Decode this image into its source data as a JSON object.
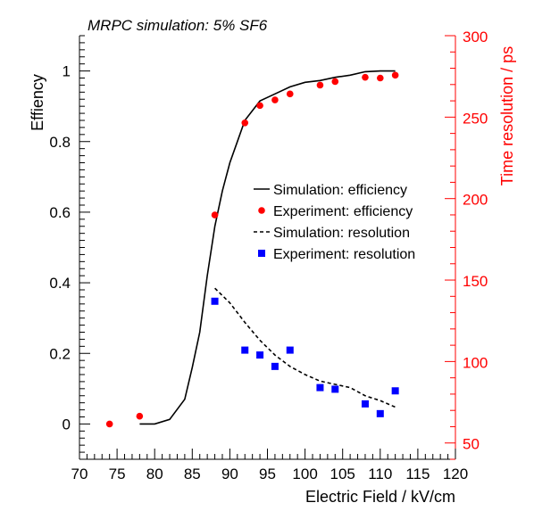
{
  "chart_data": {
    "type": "line",
    "title": "MRPC simulation: 5% SF6",
    "xlabel": "Electric Field / kV/cm",
    "ylabel": "Effiency",
    "y2label": "Time resolution / ps",
    "xlim": [
      70,
      120
    ],
    "ylim": [
      -0.1,
      1.1
    ],
    "y2lim": [
      40,
      300
    ],
    "x_ticks": [
      "70",
      "75",
      "80",
      "85",
      "90",
      "95",
      "100",
      "105",
      "110",
      "115",
      "120"
    ],
    "y_ticks": [
      "0",
      "0.2",
      "0.4",
      "0.6",
      "0.8",
      "1"
    ],
    "y2_ticks": [
      "50",
      "100",
      "150",
      "200",
      "250",
      "300"
    ],
    "legend_position": "center-right",
    "grid": false,
    "colors": {
      "axis": "#000000",
      "right_axis": "#ff0000",
      "experiment_efficiency": "#ff0000",
      "experiment_resolution": "#0000ff"
    },
    "series": [
      {
        "name": "Simulation: efficiency",
        "axis": "left",
        "style": "solid-line",
        "x": [
          78,
          80,
          82,
          84,
          85,
          86,
          87,
          88,
          89,
          90,
          91,
          92,
          94,
          96,
          98,
          100,
          102,
          104,
          106,
          108,
          110,
          112
        ],
        "y": [
          0.0,
          0.0,
          0.013,
          0.07,
          0.16,
          0.26,
          0.42,
          0.56,
          0.66,
          0.74,
          0.8,
          0.86,
          0.915,
          0.935,
          0.955,
          0.968,
          0.973,
          0.982,
          0.988,
          0.998,
          1.0,
          1.0
        ]
      },
      {
        "name": "Experiment: efficiency",
        "axis": "left",
        "style": "circle-marker",
        "x": [
          74,
          78,
          88,
          92,
          94,
          96,
          98,
          102,
          104,
          108,
          110,
          112
        ],
        "y": [
          0.0,
          0.022,
          0.592,
          0.853,
          0.902,
          0.918,
          0.935,
          0.96,
          0.97,
          0.982,
          0.98,
          0.988
        ]
      },
      {
        "name": "Simulation: resolution",
        "axis": "right",
        "style": "dashed-line",
        "x": [
          88,
          90,
          92,
          94,
          96,
          98,
          100,
          102,
          104,
          106,
          108,
          110,
          112
        ],
        "y": [
          145,
          136,
          124,
          113,
          104,
          97,
          92,
          88,
          86,
          84,
          79,
          76,
          72
        ]
      },
      {
        "name": "Experiment: resolution",
        "axis": "right",
        "style": "square-marker",
        "x": [
          88,
          92,
          94,
          96,
          98,
          102,
          104,
          108,
          110,
          112
        ],
        "y": [
          137,
          107,
          104,
          97,
          107,
          84,
          83,
          74,
          68,
          82
        ]
      }
    ]
  }
}
